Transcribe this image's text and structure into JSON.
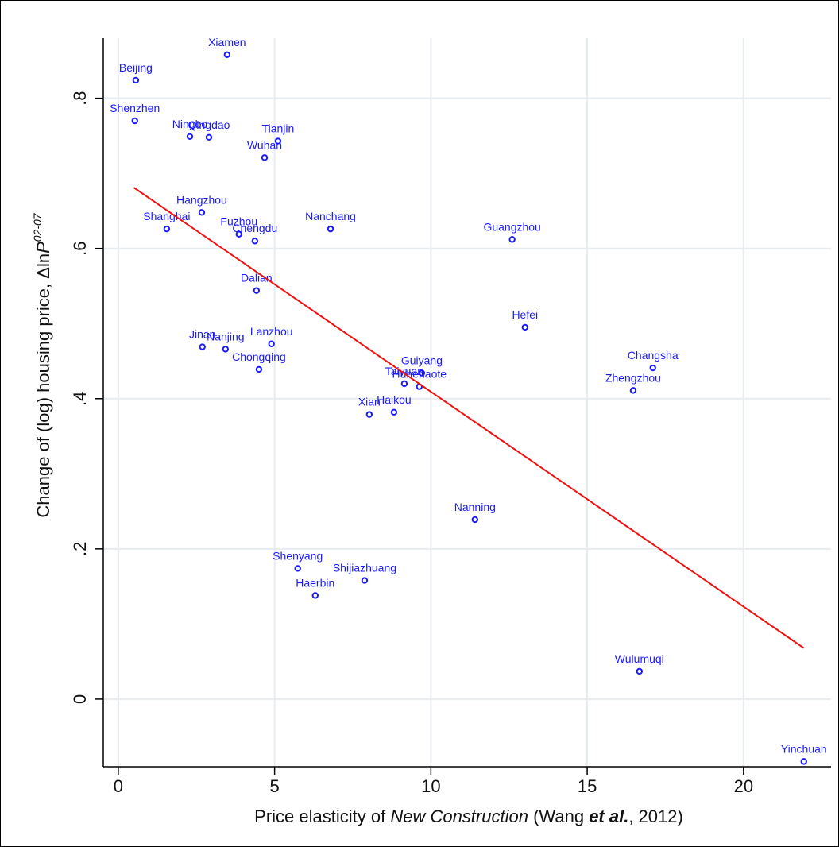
{
  "chart_data": {
    "type": "scatter",
    "x_label": [
      "Price elasticity of ",
      "New Construction",
      " (Wang ",
      "et al.",
      ", 2012)"
    ],
    "y_label": [
      "Change of (log) housing price, Δln",
      "P",
      "02-07"
    ],
    "xlim": [
      -0.48,
      22.8
    ],
    "ylim": [
      -0.09,
      0.88
    ],
    "xticks": [
      0,
      5,
      10,
      15,
      20
    ],
    "yticks": [
      0,
      {
        "value": 0.2,
        "label": ".2"
      },
      {
        "value": 0.4,
        "label": ".4"
      },
      {
        "value": 0.6,
        "label": ".6"
      },
      {
        "value": 0.8,
        "label": ".8"
      }
    ],
    "grid": true,
    "series": [
      {
        "color": "#1a1aff",
        "labels": [
          "Xiamen",
          "Beijing",
          "Shenzhen",
          "Ningbo",
          "Qingdao",
          "Tianjin",
          "Wuhan",
          "Hangzhou",
          "Shanghai",
          "Fuzhou",
          "Chengdu",
          "Nanchang",
          "Guangzhou",
          "Dalian",
          "Hefei",
          "Jinan",
          "Nanjing",
          "Lanzhou",
          "Chongqing",
          "Changsha",
          "Zhengzhou",
          "Guiyang",
          "Taiyuan",
          "Huhehaote",
          "Xian",
          "Haikou",
          "Nanning",
          "Shenyang",
          "Shijiazhuang",
          "Haerbin",
          "Wulumuqi",
          "Yinchuan"
        ],
        "x": [
          3.48,
          0.56,
          0.53,
          2.29,
          2.9,
          5.11,
          4.68,
          2.67,
          1.55,
          3.86,
          4.37,
          6.79,
          12.6,
          4.42,
          13.01,
          2.69,
          3.43,
          4.9,
          4.5,
          17.1,
          16.47,
          9.71,
          9.15,
          9.63,
          8.03,
          8.82,
          11.41,
          5.74,
          7.88,
          6.3,
          16.67,
          21.93
        ],
        "values": [
          0.858,
          0.824,
          0.77,
          0.749,
          0.748,
          0.743,
          0.721,
          0.648,
          0.626,
          0.619,
          0.61,
          0.626,
          0.612,
          0.544,
          0.495,
          0.469,
          0.466,
          0.473,
          0.439,
          0.441,
          0.411,
          0.434,
          0.42,
          0.416,
          0.379,
          0.382,
          0.239,
          0.174,
          0.158,
          0.138,
          0.037,
          -0.083
        ]
      }
    ],
    "fit": {
      "color": "#ee1111",
      "x": [
        0.5,
        21.93
      ],
      "values": [
        0.681,
        0.068
      ]
    }
  }
}
